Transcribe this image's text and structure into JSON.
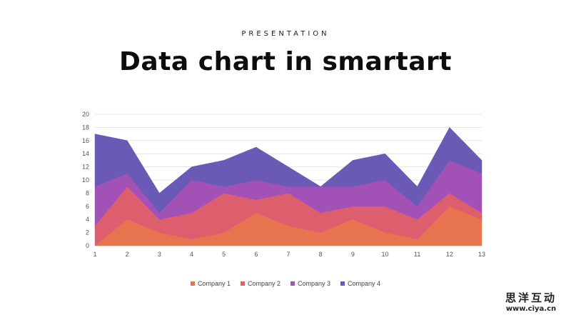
{
  "header": {
    "eyebrow": "PRESENTATION",
    "title": "Data chart in smartart"
  },
  "watermark": {
    "name": "思洋互动",
    "url": "www.ciya.cn"
  },
  "chart_data": {
    "type": "area",
    "stacked": true,
    "x": [
      1,
      2,
      3,
      4,
      5,
      6,
      7,
      8,
      9,
      10,
      11,
      12,
      13
    ],
    "ylim": [
      0,
      20
    ],
    "yticks": [
      0,
      2,
      4,
      6,
      8,
      10,
      12,
      14,
      16,
      18,
      20
    ],
    "grid": true,
    "legend": "bottom",
    "series": [
      {
        "name": "Company 1",
        "color": "#e8744f",
        "values": [
          0,
          4,
          2,
          1,
          2,
          5,
          3,
          2,
          4,
          2,
          1,
          6,
          4
        ]
      },
      {
        "name": "Company 2",
        "color": "#dd5f6e",
        "values": [
          3,
          5,
          2,
          4,
          6,
          2,
          5,
          3,
          2,
          4,
          3,
          2,
          1
        ]
      },
      {
        "name": "Company 3",
        "color": "#a251b6",
        "values": [
          6,
          2,
          1,
          5,
          1,
          3,
          1,
          4,
          3,
          4,
          2,
          5,
          6
        ]
      },
      {
        "name": "Company 4",
        "color": "#6a5ab6",
        "values": [
          8,
          5,
          3,
          2,
          4,
          5,
          3,
          0,
          4,
          4,
          3,
          5,
          2
        ]
      }
    ]
  }
}
